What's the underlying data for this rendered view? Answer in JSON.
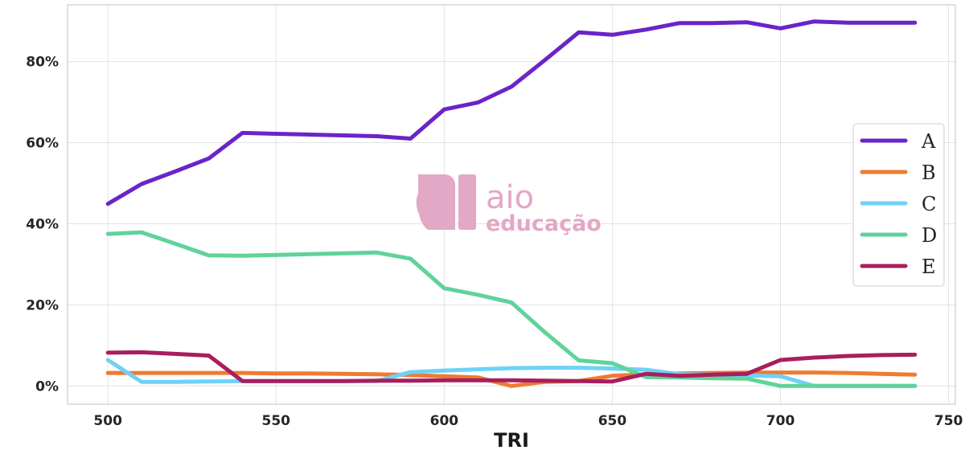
{
  "chart_data": {
    "type": "line",
    "xlabel": "TRI",
    "ylabel": "",
    "xlim": [
      488,
      752
    ],
    "ylim": [
      -4.5,
      94
    ],
    "x_ticks": [
      500,
      550,
      600,
      650,
      700,
      750
    ],
    "y_ticks": [
      0,
      20,
      40,
      60,
      80
    ],
    "y_tick_labels": [
      "0%",
      "20%",
      "40%",
      "60%",
      "80%"
    ],
    "grid": true,
    "legend_position": "right",
    "x": [
      500,
      510,
      520,
      530,
      540,
      550,
      560,
      570,
      580,
      590,
      600,
      610,
      620,
      630,
      640,
      650,
      660,
      670,
      680,
      690,
      700,
      710,
      720,
      730,
      740
    ],
    "series": [
      {
        "name": "A",
        "color": "#6a24c8",
        "values": [
          44.9,
          49.8,
          52.9,
          56.1,
          62.4,
          62.2,
          62.0,
          61.8,
          61.6,
          61.0,
          68.2,
          69.9,
          73.8,
          80.4,
          87.2,
          86.6,
          87.9,
          89.5,
          89.5,
          89.7,
          88.2,
          89.9,
          89.6,
          89.6,
          89.6
        ]
      },
      {
        "name": "B",
        "color": "#ee7b32",
        "values": [
          3.2,
          3.2,
          3.2,
          3.2,
          3.2,
          3.1,
          3.1,
          3.0,
          2.9,
          2.7,
          2.4,
          2.1,
          0.0,
          1.0,
          1.2,
          2.5,
          2.9,
          3.1,
          3.2,
          3.3,
          3.3,
          3.3,
          3.2,
          3.0,
          2.8
        ]
      },
      {
        "name": "C",
        "color": "#6ed2f6",
        "values": [
          6.4,
          1.0,
          1.0,
          1.1,
          1.2,
          1.2,
          1.2,
          1.2,
          1.2,
          3.4,
          3.8,
          4.1,
          4.4,
          4.5,
          4.5,
          4.3,
          4.0,
          2.9,
          2.8,
          2.6,
          2.4,
          0.0,
          0.0,
          0.0,
          0.0
        ]
      },
      {
        "name": "D",
        "color": "#5fd39a",
        "values": [
          37.5,
          37.9,
          35.1,
          32.2,
          32.1,
          32.3,
          32.5,
          32.7,
          32.9,
          31.4,
          24.1,
          22.5,
          20.6,
          13.2,
          6.3,
          5.6,
          2.2,
          2.1,
          1.9,
          1.8,
          0.0,
          0.0,
          0.0,
          0.0,
          0.0
        ]
      },
      {
        "name": "E",
        "color": "#a81e5e",
        "values": [
          8.2,
          8.3,
          7.9,
          7.5,
          1.2,
          1.2,
          1.2,
          1.2,
          1.3,
          1.3,
          1.4,
          1.4,
          1.4,
          1.3,
          1.2,
          1.1,
          3.0,
          2.5,
          2.8,
          3.0,
          6.4,
          7.0,
          7.4,
          7.6,
          7.7
        ]
      }
    ]
  },
  "watermark": {
    "line1": "aio",
    "line2": "educação",
    "color": "#e3a8c6"
  }
}
